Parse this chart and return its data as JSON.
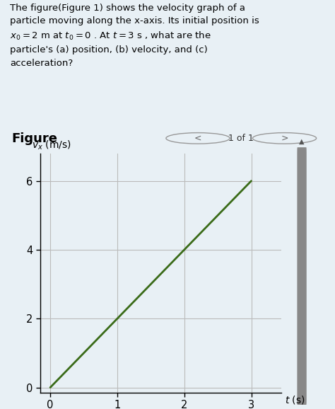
{
  "text_block_bg": "#cce4f0",
  "fig_label": "Figure",
  "fig_nav": "1 of 1",
  "line_x": [
    0,
    3
  ],
  "line_y": [
    0,
    6
  ],
  "line_color": "#3a6b18",
  "line_width": 2.0,
  "xlabel": "t (s)",
  "xlim": [
    -0.15,
    3.45
  ],
  "ylim": [
    -0.15,
    6.8
  ],
  "xticks": [
    0,
    1,
    2,
    3
  ],
  "yticks": [
    0,
    2,
    4,
    6
  ],
  "grid_color": "#bbbbbb",
  "grid_linewidth": 0.8,
  "bg_color": "#e8f0f5",
  "plot_bg": "#e8f0f5",
  "scrollbar_color": "#888888",
  "scrollbar_bg": "#c8c8c8"
}
